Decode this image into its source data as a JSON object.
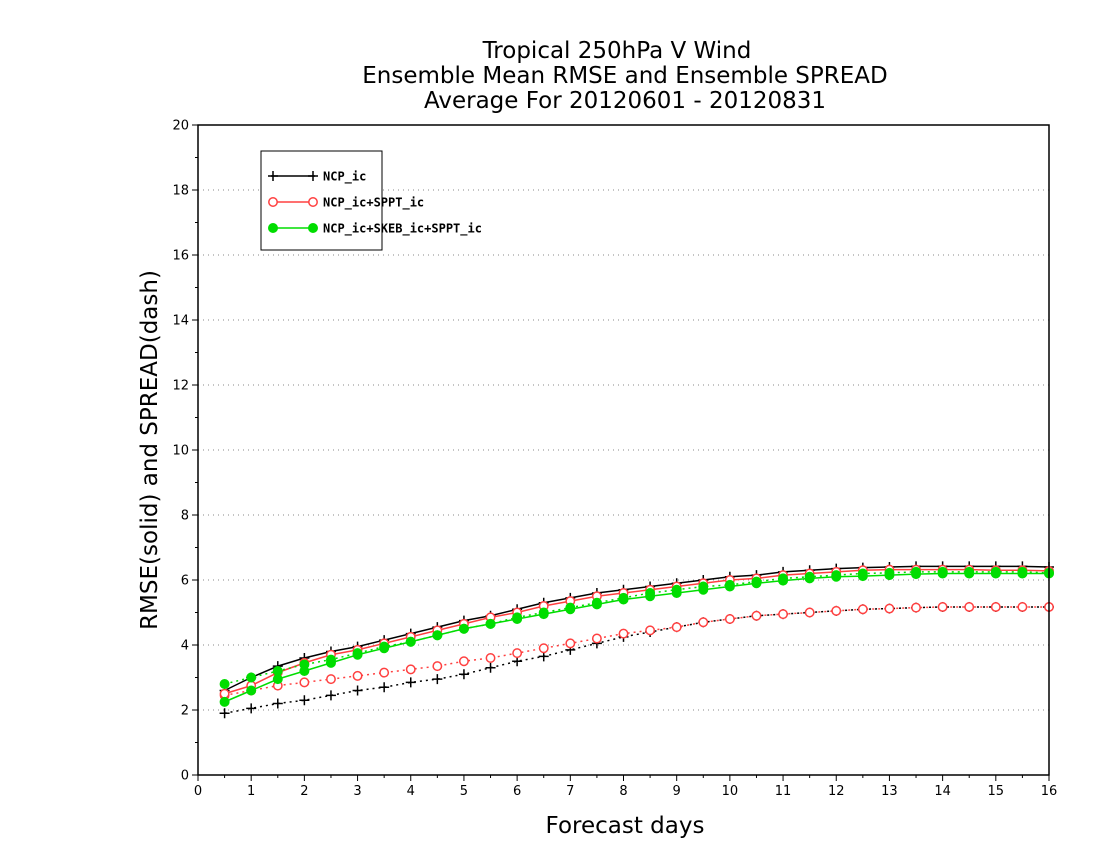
{
  "chart_data": {
    "type": "line",
    "title": [
      "Tropical 250hPa V Wind",
      "Ensemble Mean RMSE and Ensemble SPREAD",
      "Average For 20120601 - 20120831"
    ],
    "xlabel": "Forecast days",
    "ylabel": "RMSE(solid) and SPREAD(dash)",
    "xlim": [
      0,
      16
    ],
    "ylim": [
      0,
      20
    ],
    "xticks": [
      "0",
      "1",
      "2",
      "3",
      "4",
      "5",
      "6",
      "7",
      "8",
      "9",
      "10",
      "11",
      "12",
      "13",
      "14",
      "15",
      "16"
    ],
    "yticks": [
      "0",
      "2",
      "4",
      "6",
      "8",
      "10",
      "12",
      "14",
      "16",
      "18",
      "20"
    ],
    "grid": true,
    "legend_position": "top-left",
    "x": [
      0.5,
      1,
      1.5,
      2,
      2.5,
      3,
      3.5,
      4,
      4.5,
      5,
      5.5,
      6,
      6.5,
      7,
      7.5,
      8,
      8.5,
      9,
      9.5,
      10,
      10.5,
      11,
      11.5,
      12,
      12.5,
      13,
      13.5,
      14,
      14.5,
      15,
      15.5,
      16
    ],
    "series": [
      {
        "name": "NCP_ic",
        "color": "#000000",
        "marker": "plus",
        "rmse": [
          2.6,
          3.0,
          3.35,
          3.6,
          3.8,
          3.95,
          4.15,
          4.35,
          4.55,
          4.75,
          4.9,
          5.1,
          5.3,
          5.45,
          5.6,
          5.7,
          5.8,
          5.9,
          6.0,
          6.1,
          6.15,
          6.25,
          6.3,
          6.35,
          6.38,
          6.4,
          6.42,
          6.42,
          6.42,
          6.42,
          6.42,
          6.4
        ],
        "spread": [
          1.9,
          2.05,
          2.2,
          2.3,
          2.45,
          2.6,
          2.7,
          2.85,
          2.95,
          3.1,
          3.3,
          3.5,
          3.65,
          3.85,
          4.05,
          4.25,
          4.4,
          4.55,
          4.7,
          4.8,
          4.9,
          4.95,
          5.0,
          5.05,
          5.1,
          5.12,
          5.15,
          5.17,
          5.17,
          5.17,
          5.17,
          5.17
        ]
      },
      {
        "name": "NCP_ic+SPPT_ic",
        "color": "#ff4040",
        "marker": "open-circle",
        "rmse": [
          2.5,
          2.75,
          3.15,
          3.45,
          3.7,
          3.85,
          4.05,
          4.25,
          4.45,
          4.65,
          4.85,
          5.0,
          5.2,
          5.35,
          5.5,
          5.6,
          5.7,
          5.8,
          5.9,
          6.0,
          6.05,
          6.15,
          6.2,
          6.25,
          6.3,
          6.32,
          6.32,
          6.32,
          6.32,
          6.3,
          6.3,
          6.28
        ],
        "spread": [
          2.45,
          2.6,
          2.75,
          2.85,
          2.95,
          3.05,
          3.15,
          3.25,
          3.35,
          3.5,
          3.6,
          3.75,
          3.9,
          4.05,
          4.2,
          4.35,
          4.45,
          4.55,
          4.7,
          4.8,
          4.9,
          4.95,
          5.0,
          5.05,
          5.1,
          5.12,
          5.15,
          5.17,
          5.17,
          5.17,
          5.17,
          5.17
        ]
      },
      {
        "name": "NCP_ic+SKEB_ic+SPPT_ic",
        "color": "#00dd00",
        "marker": "filled-circle",
        "rmse": [
          2.25,
          2.6,
          2.95,
          3.2,
          3.45,
          3.7,
          3.9,
          4.1,
          4.3,
          4.5,
          4.65,
          4.8,
          4.95,
          5.1,
          5.25,
          5.4,
          5.5,
          5.6,
          5.7,
          5.8,
          5.9,
          5.98,
          6.05,
          6.1,
          6.12,
          6.15,
          6.18,
          6.2,
          6.2,
          6.2,
          6.2,
          6.2
        ],
        "spread": [
          2.8,
          3.0,
          3.2,
          3.4,
          3.55,
          3.75,
          3.95,
          4.1,
          4.3,
          4.5,
          4.65,
          4.85,
          5.0,
          5.15,
          5.3,
          5.45,
          5.6,
          5.7,
          5.8,
          5.85,
          5.95,
          6.05,
          6.1,
          6.15,
          6.2,
          6.22,
          6.25,
          6.25,
          6.25,
          6.25,
          6.25,
          6.22
        ]
      }
    ]
  }
}
